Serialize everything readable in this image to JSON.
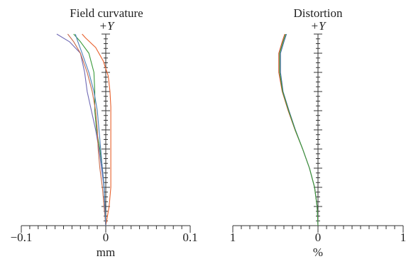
{
  "chart_data": [
    {
      "type": "line",
      "title": "Field curvature",
      "axis_label_top": "+Y",
      "xlabel": "mm",
      "xlim": [
        -0.1,
        0.1
      ],
      "ylim": [
        0,
        1
      ],
      "xtick_labels": [
        "−0.1",
        "0",
        "0.1"
      ],
      "grid": false,
      "series": [
        {
          "color": "#e8602c",
          "points": [
            [
              0,
              0
            ],
            [
              0.002,
              0.05
            ],
            [
              0.004,
              0.1
            ],
            [
              0.006,
              0.2
            ],
            [
              0.006,
              0.3
            ],
            [
              0.006,
              0.45
            ],
            [
              0.006,
              0.55
            ],
            [
              0.006,
              0.62
            ],
            [
              0.005,
              0.7
            ],
            [
              0.003,
              0.78
            ],
            [
              -0.003,
              0.86
            ],
            [
              -0.012,
              0.93
            ],
            [
              -0.024,
              0.98
            ],
            [
              -0.028,
              1.0
            ]
          ]
        },
        {
          "color": "#3a9a3a",
          "points": [
            [
              0,
              0
            ],
            [
              -0.001,
              0.1
            ],
            [
              -0.002,
              0.2
            ],
            [
              -0.004,
              0.3
            ],
            [
              -0.007,
              0.4
            ],
            [
              -0.011,
              0.5
            ],
            [
              -0.013,
              0.6
            ],
            [
              -0.013,
              0.7
            ],
            [
              -0.014,
              0.8
            ],
            [
              -0.02,
              0.9
            ],
            [
              -0.03,
              0.96
            ],
            [
              -0.038,
              1.0
            ]
          ]
        },
        {
          "color": "#6e68b4",
          "points": [
            [
              0,
              0
            ],
            [
              -0.001,
              0.1
            ],
            [
              -0.002,
              0.2
            ],
            [
              -0.005,
              0.3
            ],
            [
              -0.008,
              0.4
            ],
            [
              -0.012,
              0.5
            ],
            [
              -0.017,
              0.6
            ],
            [
              -0.022,
              0.7
            ],
            [
              -0.025,
              0.8
            ],
            [
              -0.03,
              0.9
            ],
            [
              -0.043,
              0.96
            ],
            [
              -0.058,
              1.0
            ]
          ]
        },
        {
          "color": "#c66a4a",
          "points": [
            [
              0,
              0
            ],
            [
              -0.002,
              0.1
            ],
            [
              -0.004,
              0.2
            ],
            [
              -0.007,
              0.3
            ],
            [
              -0.009,
              0.4
            ],
            [
              -0.01,
              0.5
            ],
            [
              -0.012,
              0.6
            ],
            [
              -0.016,
              0.7
            ],
            [
              -0.022,
              0.8
            ],
            [
              -0.03,
              0.9
            ],
            [
              -0.038,
              0.96
            ],
            [
              -0.045,
              1.0
            ]
          ]
        },
        {
          "color": "#4b7fb8",
          "points": [
            [
              0,
              0
            ],
            [
              -0.001,
              0.1
            ],
            [
              -0.002,
              0.2
            ],
            [
              -0.004,
              0.3
            ],
            [
              -0.006,
              0.4
            ],
            [
              -0.008,
              0.5
            ],
            [
              -0.01,
              0.6
            ],
            [
              -0.014,
              0.7
            ],
            [
              -0.02,
              0.8
            ],
            [
              -0.028,
              0.9
            ],
            [
              -0.033,
              0.96
            ],
            [
              -0.036,
              1.0
            ]
          ]
        }
      ]
    },
    {
      "type": "line",
      "title": "Distortion",
      "axis_label_top": "+Y",
      "xlabel": "%",
      "xlim": [
        1,
        -1
      ],
      "ylim": [
        0,
        1
      ],
      "xtick_labels": [
        "1",
        "0",
        "1"
      ],
      "grid": false,
      "series": [
        {
          "color": "#d9502e",
          "points": [
            [
              0,
              0
            ],
            [
              0.01,
              0.1
            ],
            [
              0.04,
              0.2
            ],
            [
              0.1,
              0.3
            ],
            [
              0.18,
              0.4
            ],
            [
              0.27,
              0.5
            ],
            [
              0.35,
              0.6
            ],
            [
              0.42,
              0.7
            ],
            [
              0.46,
              0.8
            ],
            [
              0.46,
              0.9
            ],
            [
              0.42,
              0.96
            ],
            [
              0.39,
              1.0
            ]
          ]
        },
        {
          "color": "#4a68a8",
          "points": [
            [
              0,
              0
            ],
            [
              0.01,
              0.1
            ],
            [
              0.04,
              0.2
            ],
            [
              0.1,
              0.3
            ],
            [
              0.18,
              0.4
            ],
            [
              0.265,
              0.5
            ],
            [
              0.34,
              0.6
            ],
            [
              0.41,
              0.7
            ],
            [
              0.44,
              0.8
            ],
            [
              0.44,
              0.9
            ],
            [
              0.4,
              0.96
            ],
            [
              0.37,
              1.0
            ]
          ]
        },
        {
          "color": "#3a9a3a",
          "points": [
            [
              0,
              0
            ],
            [
              0.01,
              0.1
            ],
            [
              0.04,
              0.2
            ],
            [
              0.1,
              0.3
            ],
            [
              0.18,
              0.4
            ],
            [
              0.268,
              0.5
            ],
            [
              0.345,
              0.6
            ],
            [
              0.415,
              0.7
            ],
            [
              0.45,
              0.8
            ],
            [
              0.45,
              0.9
            ],
            [
              0.41,
              0.96
            ],
            [
              0.38,
              1.0
            ]
          ]
        }
      ]
    }
  ]
}
